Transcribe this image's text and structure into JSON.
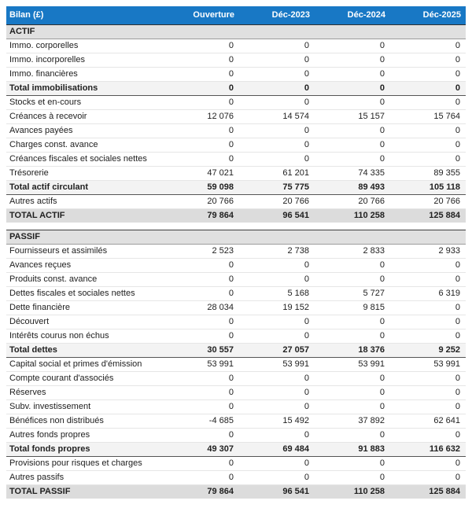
{
  "chart_data": {
    "type": "table",
    "title": "Bilan (£)",
    "currency": "£",
    "columns": [
      "Ouverture",
      "Déc-2023",
      "Déc-2024",
      "Déc-2025"
    ],
    "sections": [
      {
        "title": "ACTIF",
        "rows": [
          {
            "label": "Immo. corporelles",
            "style": "normal",
            "values": [
              "0",
              "0",
              "0",
              "0"
            ]
          },
          {
            "label": "Immo. incorporelles",
            "style": "normal",
            "values": [
              "0",
              "0",
              "0",
              "0"
            ]
          },
          {
            "label": "Immo. financières",
            "style": "normal",
            "values": [
              "0",
              "0",
              "0",
              "0"
            ]
          },
          {
            "label": "Total immobilisations",
            "style": "subtotal",
            "values": [
              "0",
              "0",
              "0",
              "0"
            ]
          },
          {
            "label": "Stocks et en-cours",
            "style": "normal",
            "values": [
              "0",
              "0",
              "0",
              "0"
            ]
          },
          {
            "label": "Créances à recevoir",
            "style": "normal",
            "values": [
              "12 076",
              "14 574",
              "15 157",
              "15 764"
            ]
          },
          {
            "label": "Avances payées",
            "style": "normal",
            "values": [
              "0",
              "0",
              "0",
              "0"
            ]
          },
          {
            "label": "Charges const. avance",
            "style": "normal",
            "values": [
              "0",
              "0",
              "0",
              "0"
            ]
          },
          {
            "label": "Créances fiscales et sociales nettes",
            "style": "normal",
            "values": [
              "0",
              "0",
              "0",
              "0"
            ]
          },
          {
            "label": "Trésorerie",
            "style": "normal",
            "values": [
              "47 021",
              "61 201",
              "74 335",
              "89 355"
            ]
          },
          {
            "label": "Total actif circulant",
            "style": "subtotal",
            "values": [
              "59 098",
              "75 775",
              "89 493",
              "105 118"
            ]
          },
          {
            "label": "Autres actifs",
            "style": "normal",
            "values": [
              "20 766",
              "20 766",
              "20 766",
              "20 766"
            ]
          },
          {
            "label": "TOTAL ACTIF",
            "style": "grandtotal",
            "values": [
              "79 864",
              "96 541",
              "110 258",
              "125 884"
            ]
          }
        ]
      },
      {
        "title": "PASSIF",
        "rows": [
          {
            "label": "Fournisseurs et assimilés",
            "style": "normal",
            "values": [
              "2 523",
              "2 738",
              "2 833",
              "2 933"
            ]
          },
          {
            "label": "Avances reçues",
            "style": "normal",
            "values": [
              "0",
              "0",
              "0",
              "0"
            ]
          },
          {
            "label": "Produits const. avance",
            "style": "normal",
            "values": [
              "0",
              "0",
              "0",
              "0"
            ]
          },
          {
            "label": "Dettes fiscales et sociales nettes",
            "style": "normal",
            "values": [
              "0",
              "5 168",
              "5 727",
              "6 319"
            ]
          },
          {
            "label": "Dette financière",
            "style": "normal",
            "values": [
              "28 034",
              "19 152",
              "9 815",
              "0"
            ]
          },
          {
            "label": "Découvert",
            "style": "normal",
            "values": [
              "0",
              "0",
              "0",
              "0"
            ]
          },
          {
            "label": "Intérêts courus non échus",
            "style": "normal",
            "values": [
              "0",
              "0",
              "0",
              "0"
            ]
          },
          {
            "label": "Total dettes",
            "style": "subtotal",
            "values": [
              "30 557",
              "27 057",
              "18 376",
              "9 252"
            ]
          },
          {
            "label": "Capital social et primes d'émission",
            "style": "normal",
            "values": [
              "53 991",
              "53 991",
              "53 991",
              "53 991"
            ]
          },
          {
            "label": "Compte courant d'associés",
            "style": "normal",
            "values": [
              "0",
              "0",
              "0",
              "0"
            ]
          },
          {
            "label": "Réserves",
            "style": "normal",
            "values": [
              "0",
              "0",
              "0",
              "0"
            ]
          },
          {
            "label": "Subv. investissement",
            "style": "normal",
            "values": [
              "0",
              "0",
              "0",
              "0"
            ]
          },
          {
            "label": "Bénéfices non distribués",
            "style": "normal",
            "values": [
              "-4 685",
              "15 492",
              "37 892",
              "62 641"
            ]
          },
          {
            "label": "Autres fonds propres",
            "style": "normal",
            "values": [
              "0",
              "0",
              "0",
              "0"
            ]
          },
          {
            "label": "Total fonds propres",
            "style": "subtotal",
            "values": [
              "49 307",
              "69 484",
              "91 883",
              "116 632"
            ]
          },
          {
            "label": "Provisions pour risques et charges",
            "style": "normal",
            "values": [
              "0",
              "0",
              "0",
              "0"
            ]
          },
          {
            "label": "Autres passifs",
            "style": "normal",
            "values": [
              "0",
              "0",
              "0",
              "0"
            ]
          },
          {
            "label": "TOTAL PASSIF",
            "style": "grandtotal",
            "values": [
              "79 864",
              "96 541",
              "110 258",
              "125 884"
            ]
          }
        ]
      }
    ]
  },
  "colors": {
    "header_bg": "#1878c5",
    "header_text": "#ffffff",
    "section_bg": "#e0e0e0",
    "subtotal_bg": "#f3f3f3",
    "grand_total_bg": "#dcdcdc",
    "border_dark": "#555555",
    "border_light": "#e6e6e6",
    "text": "#212121"
  }
}
